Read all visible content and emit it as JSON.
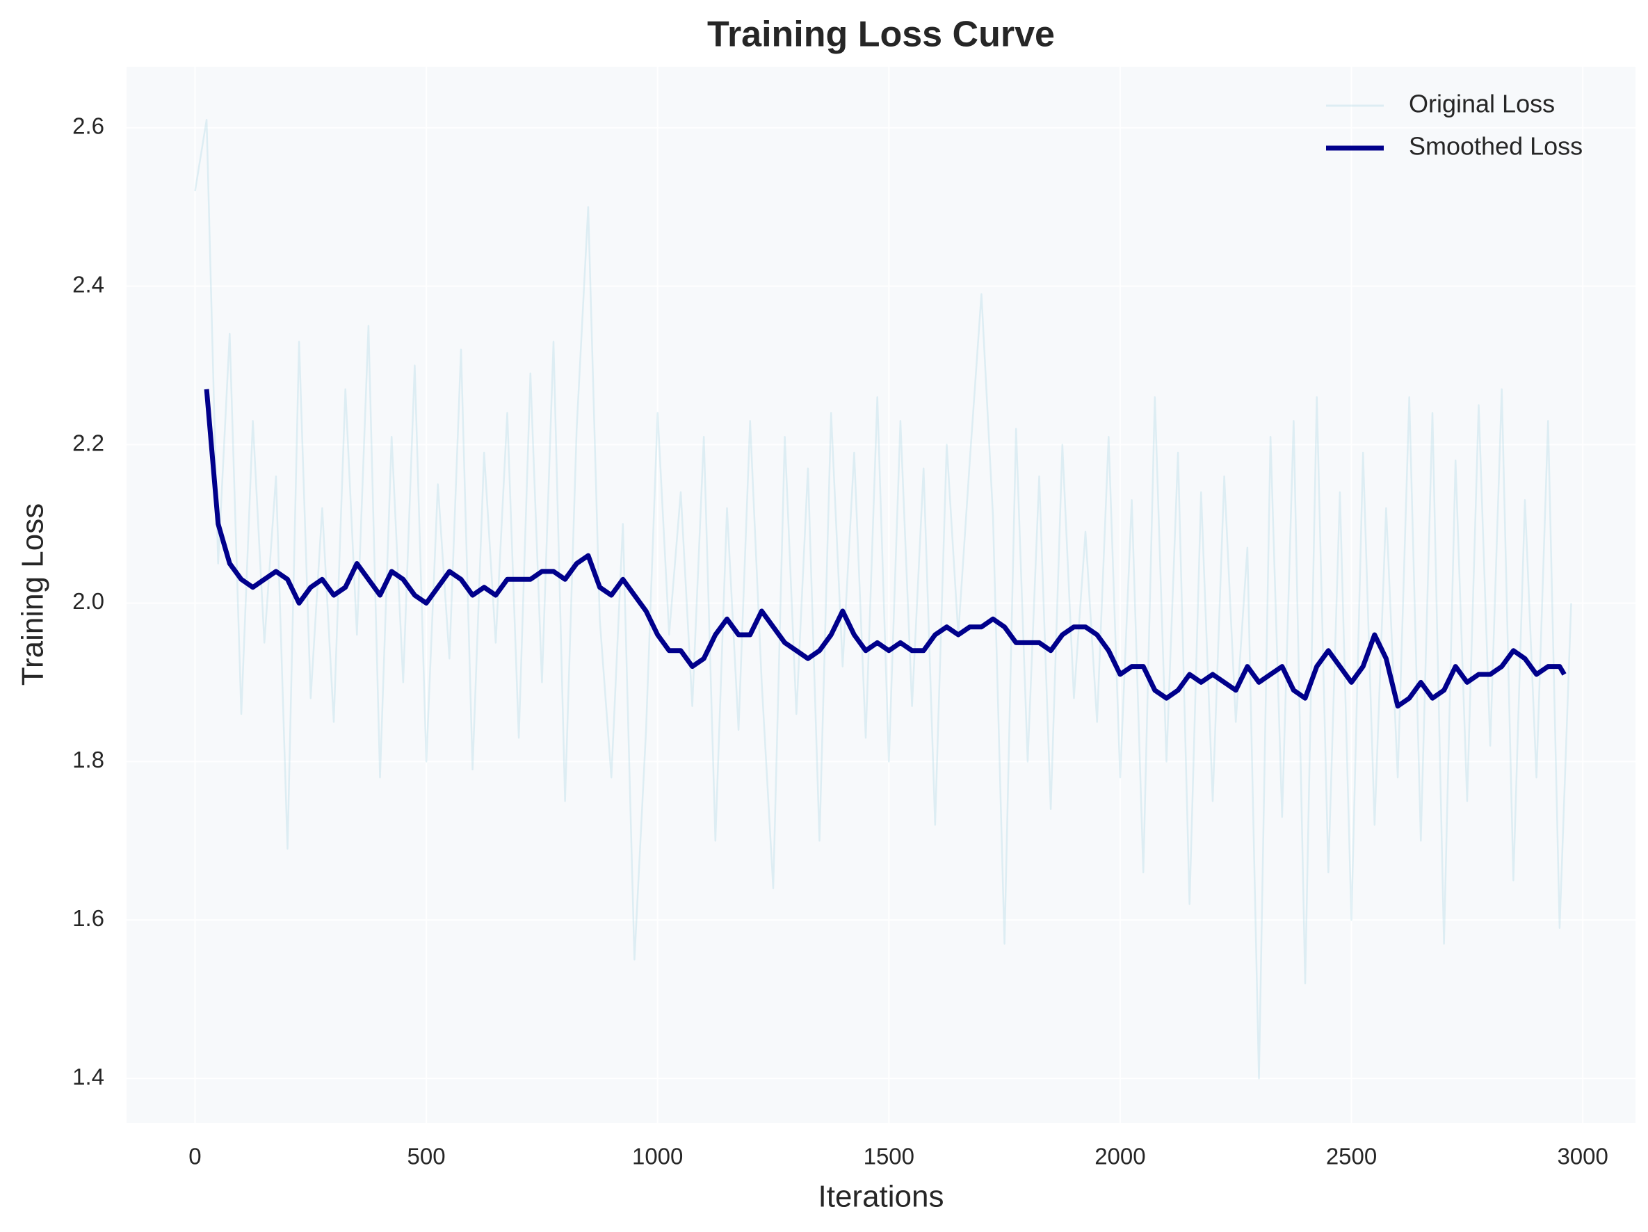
{
  "chart_data": {
    "type": "line",
    "title": "Training Loss Curve",
    "xlabel": "Iterations",
    "ylabel": "Training Loss",
    "xlim": [
      -148,
      3114
    ],
    "ylim": [
      1.344,
      2.677
    ],
    "xticks": [
      0,
      500,
      1000,
      1500,
      2000,
      2500,
      3000
    ],
    "yticks": [
      1.4,
      1.6,
      1.8,
      {
        "value": 2,
        "label": "2.0"
      },
      2.2,
      2.4,
      2.6
    ],
    "grid": true,
    "legend": "upper right",
    "series": [
      {
        "name": "Original Loss",
        "color": "#add8e6",
        "x": [
          0,
          25,
          50,
          75,
          100,
          125,
          150,
          175,
          200,
          225,
          250,
          275,
          300,
          325,
          350,
          375,
          400,
          425,
          450,
          475,
          500,
          525,
          550,
          575,
          600,
          625,
          650,
          675,
          700,
          725,
          750,
          775,
          800,
          825,
          850,
          875,
          900,
          925,
          950,
          975,
          1000,
          1025,
          1050,
          1075,
          1100,
          1125,
          1150,
          1175,
          1200,
          1225,
          1250,
          1275,
          1300,
          1325,
          1350,
          1375,
          1400,
          1425,
          1450,
          1475,
          1500,
          1525,
          1550,
          1575,
          1600,
          1625,
          1650,
          1675,
          1700,
          1725,
          1750,
          1775,
          1800,
          1825,
          1850,
          1875,
          1900,
          1925,
          1950,
          1975,
          2000,
          2025,
          2050,
          2075,
          2100,
          2125,
          2150,
          2175,
          2200,
          2225,
          2250,
          2275,
          2300,
          2325,
          2350,
          2375,
          2400,
          2425,
          2450,
          2475,
          2500,
          2525,
          2550,
          2575,
          2600,
          2625,
          2650,
          2675,
          2700,
          2725,
          2750,
          2775,
          2800,
          2825,
          2850,
          2875,
          2900,
          2925,
          2950,
          2975
        ],
        "values": [
          2.52,
          2.61,
          2.05,
          2.34,
          1.86,
          2.23,
          1.95,
          2.16,
          1.69,
          2.33,
          1.88,
          2.12,
          1.85,
          2.27,
          1.96,
          2.35,
          1.78,
          2.21,
          1.9,
          2.3,
          1.8,
          2.15,
          1.93,
          2.32,
          1.79,
          2.19,
          1.95,
          2.24,
          1.83,
          2.29,
          1.9,
          2.33,
          1.75,
          2.22,
          2.5,
          1.98,
          1.78,
          2.1,
          1.55,
          1.84,
          2.24,
          1.96,
          2.14,
          1.87,
          2.21,
          1.7,
          2.12,
          1.84,
          2.23,
          1.9,
          1.64,
          2.21,
          1.86,
          2.17,
          1.7,
          2.24,
          1.92,
          2.19,
          1.83,
          2.26,
          1.8,
          2.23,
          1.87,
          2.17,
          1.72,
          2.2,
          1.96,
          2.18,
          2.39,
          2.11,
          1.57,
          2.22,
          1.8,
          2.16,
          1.74,
          2.2,
          1.88,
          2.09,
          1.85,
          2.21,
          1.78,
          2.13,
          1.66,
          2.26,
          1.8,
          2.19,
          1.62,
          2.14,
          1.75,
          2.16,
          1.85,
          2.07,
          1.4,
          2.21,
          1.73,
          2.23,
          1.52,
          2.26,
          1.66,
          2.14,
          1.6,
          2.19,
          1.72,
          2.12,
          1.78,
          2.26,
          1.7,
          2.24,
          1.57,
          2.18,
          1.75,
          2.25,
          1.82,
          2.27,
          1.65,
          2.13,
          1.78,
          2.23,
          1.59,
          2.0
        ]
      },
      {
        "name": "Smoothed Loss",
        "color": "#00008b",
        "x": [
          25,
          50,
          75,
          100,
          125,
          150,
          175,
          200,
          225,
          250,
          275,
          300,
          325,
          350,
          375,
          400,
          425,
          450,
          475,
          500,
          525,
          550,
          575,
          600,
          625,
          650,
          675,
          700,
          725,
          750,
          775,
          800,
          825,
          850,
          875,
          900,
          925,
          950,
          975,
          1000,
          1025,
          1050,
          1075,
          1100,
          1125,
          1150,
          1175,
          1200,
          1225,
          1250,
          1275,
          1300,
          1325,
          1350,
          1375,
          1400,
          1425,
          1450,
          1475,
          1500,
          1525,
          1550,
          1575,
          1600,
          1625,
          1650,
          1675,
          1700,
          1725,
          1750,
          1775,
          1800,
          1825,
          1850,
          1875,
          1900,
          1925,
          1950,
          1975,
          2000,
          2025,
          2050,
          2075,
          2100,
          2125,
          2150,
          2175,
          2200,
          2225,
          2250,
          2275,
          2300,
          2325,
          2350,
          2375,
          2400,
          2425,
          2450,
          2475,
          2500,
          2525,
          2550,
          2575,
          2600,
          2625,
          2650,
          2675,
          2700,
          2725,
          2750,
          2775,
          2800,
          2825,
          2850,
          2875,
          2900,
          2925,
          2950,
          2960
        ],
        "values": [
          2.27,
          2.1,
          2.05,
          2.03,
          2.02,
          2.03,
          2.04,
          2.03,
          2.0,
          2.02,
          2.03,
          2.01,
          2.02,
          2.05,
          2.03,
          2.01,
          2.04,
          2.03,
          2.01,
          2.0,
          2.02,
          2.04,
          2.03,
          2.01,
          2.02,
          2.01,
          2.03,
          2.03,
          2.03,
          2.04,
          2.04,
          2.03,
          2.05,
          2.06,
          2.02,
          2.01,
          2.03,
          2.01,
          1.99,
          1.96,
          1.94,
          1.94,
          1.92,
          1.93,
          1.96,
          1.98,
          1.96,
          1.96,
          1.99,
          1.97,
          1.95,
          1.94,
          1.93,
          1.94,
          1.96,
          1.99,
          1.96,
          1.94,
          1.95,
          1.94,
          1.95,
          1.94,
          1.94,
          1.96,
          1.97,
          1.96,
          1.97,
          1.97,
          1.98,
          1.97,
          1.95,
          1.95,
          1.95,
          1.94,
          1.96,
          1.97,
          1.97,
          1.96,
          1.94,
          1.91,
          1.92,
          1.92,
          1.89,
          1.88,
          1.89,
          1.91,
          1.9,
          1.91,
          1.9,
          1.89,
          1.92,
          1.9,
          1.91,
          1.92,
          1.89,
          1.88,
          1.92,
          1.94,
          1.92,
          1.9,
          1.92,
          1.96,
          1.93,
          1.87,
          1.88,
          1.9,
          1.88,
          1.89,
          1.92,
          1.9,
          1.91,
          1.91,
          1.92,
          1.94,
          1.93,
          1.91,
          1.92,
          1.92,
          1.91
        ]
      }
    ]
  }
}
